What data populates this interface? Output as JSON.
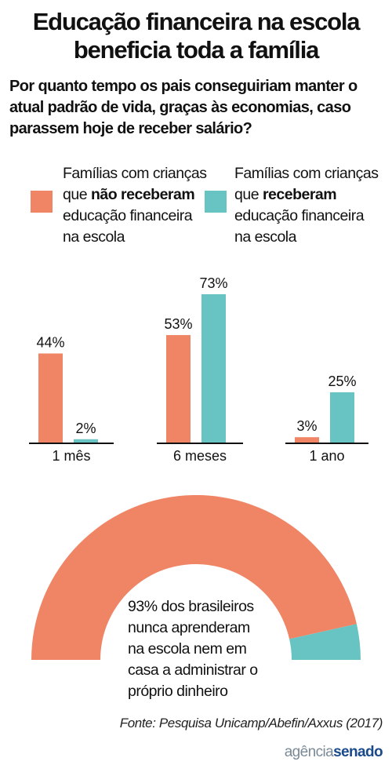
{
  "title_lines": [
    "Educação financeira na escola",
    "beneficia toda a família"
  ],
  "question_lines": [
    "Por quanto tempo os pais conseguiriam manter o",
    "atual padrão de vida, graças às economias, caso",
    "parassem hoje de receber salário?"
  ],
  "legend": {
    "not_received": {
      "line1": "Famílias com crianças",
      "line2_pre": "que ",
      "line2_bold": "não receberam",
      "line3": "educação financeira",
      "line4": "na escola"
    },
    "received": {
      "line1": "Famílias com crianças",
      "line2_pre": "que ",
      "line2_bold": "receberam",
      "line3": "educação financeira",
      "line4": "na escola"
    }
  },
  "colors": {
    "not_received": "#f08566",
    "received": "#68c3c3",
    "axis": "#111111"
  },
  "chart_data": [
    {
      "type": "bar",
      "categories": [
        "1 mês",
        "6 meses",
        "1 ano"
      ],
      "series": [
        {
          "name": "Famílias com crianças que não receberam educação financeira na escola",
          "values": [
            44,
            53,
            3
          ]
        },
        {
          "name": "Famílias com crianças que receberam educação financeira na escola",
          "values": [
            2,
            73,
            25
          ]
        }
      ],
      "value_labels": [
        [
          "44%",
          "53%",
          "3%"
        ],
        [
          "2%",
          "73%",
          "25%"
        ]
      ],
      "ylim": [
        0,
        73
      ]
    },
    {
      "type": "pie",
      "shape": "half-donut",
      "values": [
        93,
        7
      ],
      "colors": [
        "#f08566",
        "#68c3c3"
      ],
      "text_lines": [
        "93% dos brasileiros",
        "nunca aprenderam",
        "na escola nem em",
        "casa a administrar o",
        "próprio dinheiro"
      ]
    }
  ],
  "source": "Fonte: Pesquisa Unicamp/Abefin/Axxus (2017)",
  "logo": {
    "part1": "agência",
    "part2": "senado"
  }
}
